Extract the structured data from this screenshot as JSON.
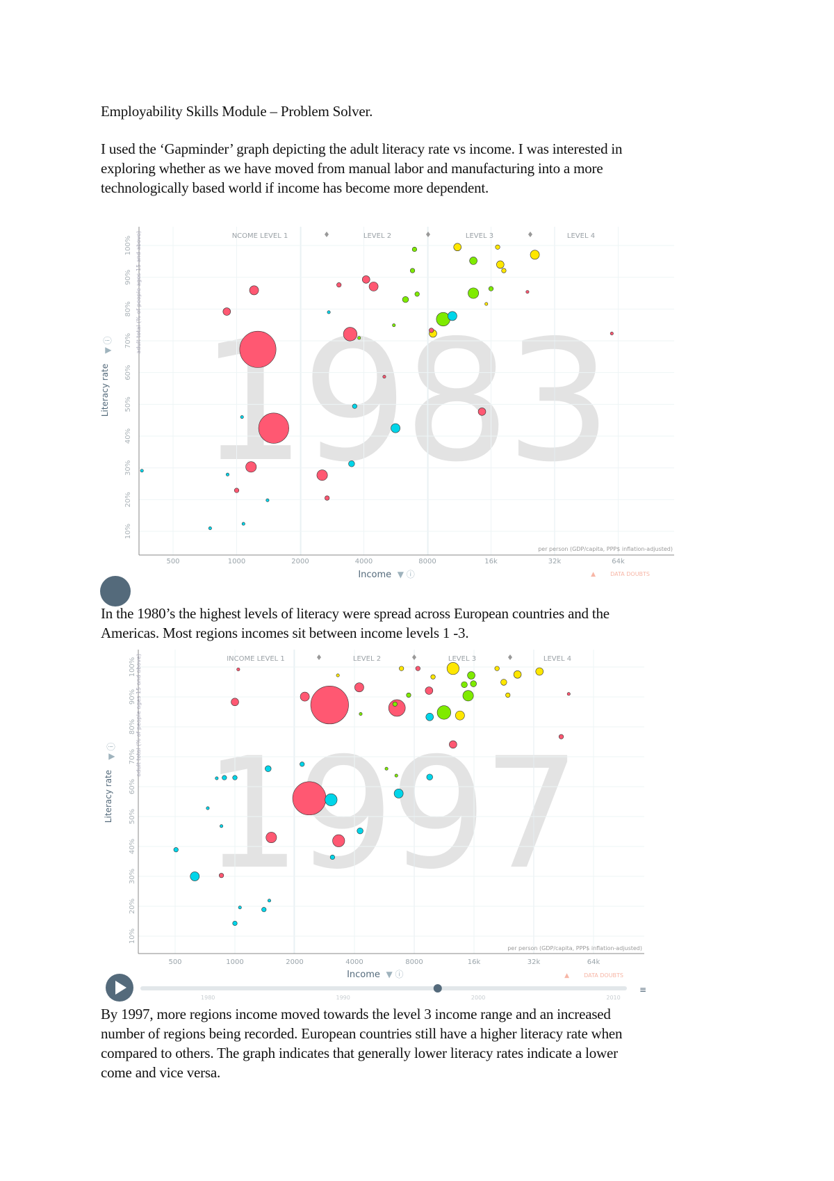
{
  "document": {
    "title": "Employability Skills Module – Problem Solver.",
    "paragraph_1": [
      "I used the ‘Gapminder’ graph depicting the adult literacy rate vs income. I was interested in",
      "exploring whether as we have moved from manual labor and manufacturing into a more",
      "technologically based world if income has become more dependent."
    ],
    "paragraph_2": [
      "In the 1980’s the highest levels of literacy were spread across European countries and the",
      "Americas. Most regions incomes sit between income levels 1 -3."
    ],
    "paragraph_3": [
      "By 1997, more regions income moved towards the level 3 income range and an increased",
      "number of regions being recorded. European countries still have a higher literacy rate when",
      "compared to others. The graph indicates that generally lower literacy rates indicate a lower",
      "come and vice versa."
    ]
  },
  "colors": {
    "red": "#ff5872",
    "cyan": "#00d5e9",
    "green": "#7feb00",
    "yellow": "#ffe700",
    "watermark": "#e3e3e3",
    "play": "#546a7b",
    "data_doubts": "#f7b6a6"
  },
  "chart_data": [
    {
      "type": "scatter",
      "year_label": "1983",
      "xlabel": "Income",
      "x_sublabel": "per person (GDP/capita, PPP$ inflation-adjusted)",
      "ylabel": "Literacy rate",
      "y_sublabel": "adult total (% of people ages 15 and above)",
      "x_scale": "log2",
      "x_ticks": [
        500,
        1000,
        2000,
        4000,
        8000,
        16000,
        32000,
        64000
      ],
      "x_tick_labels": [
        "500",
        "1000",
        "2000",
        "4000",
        "8000",
        "16k",
        "32k",
        "64k"
      ],
      "y_ticks": [
        10,
        20,
        30,
        40,
        50,
        60,
        70,
        80,
        90,
        100
      ],
      "y_tick_labels": [
        "10%",
        "20%",
        "30%",
        "40%",
        "50%",
        "60%",
        "70%",
        "80%",
        "90%",
        "100%"
      ],
      "level_labels": [
        "NCOME LEVEL 1",
        "LEVEL 2",
        "LEVEL 3",
        "LEVEL 4"
      ],
      "data_doubts": "DATA DOUBTS",
      "grid": true,
      "points": [
        {
          "x": 1260,
          "y": 67.3,
          "c": "red",
          "s": 24
        },
        {
          "x": 1498,
          "y": 42.5,
          "c": "red",
          "s": 20
        },
        {
          "x": 1209,
          "y": 85.9,
          "c": "red",
          "s": 6
        },
        {
          "x": 898,
          "y": 79.2,
          "c": "red",
          "s": 5
        },
        {
          "x": 3448,
          "y": 72.1,
          "c": "red",
          "s": 9
        },
        {
          "x": 4100,
          "y": 89.3,
          "c": "red",
          "s": 5
        },
        {
          "x": 4450,
          "y": 87.1,
          "c": "red",
          "s": 6
        },
        {
          "x": 3050,
          "y": 87.6,
          "c": "red",
          "s": 3
        },
        {
          "x": 1170,
          "y": 30.3,
          "c": "red",
          "s": 7
        },
        {
          "x": 2540,
          "y": 27.7,
          "c": "red",
          "s": 7
        },
        {
          "x": 1000,
          "y": 22.9,
          "c": "red",
          "s": 3
        },
        {
          "x": 2680,
          "y": 20.5,
          "c": "red",
          "s": 3
        },
        {
          "x": 14500,
          "y": 47.7,
          "c": "red",
          "s": 5
        },
        {
          "x": 8350,
          "y": 73.3,
          "c": "red",
          "s": 3
        },
        {
          "x": 5000,
          "y": 58.7,
          "c": "red",
          "s": 2
        },
        {
          "x": 23800,
          "y": 85.4,
          "c": "red",
          "s": 2
        },
        {
          "x": 59700,
          "y": 72.3,
          "c": "red",
          "s": 2
        },
        {
          "x": 5650,
          "y": 42.5,
          "c": "cyan",
          "s": 6
        },
        {
          "x": 10500,
          "y": 77.8,
          "c": "cyan",
          "s": 6
        },
        {
          "x": 3500,
          "y": 31.3,
          "c": "cyan",
          "s": 4
        },
        {
          "x": 3620,
          "y": 49.4,
          "c": "cyan",
          "s": 3
        },
        {
          "x": 2730,
          "y": 79,
          "c": "cyan",
          "s": 2
        },
        {
          "x": 356,
          "y": 29.1,
          "c": "cyan",
          "s": 2
        },
        {
          "x": 749,
          "y": 11,
          "c": "cyan",
          "s": 2
        },
        {
          "x": 1077,
          "y": 12.4,
          "c": "cyan",
          "s": 2
        },
        {
          "x": 1400,
          "y": 19.8,
          "c": "cyan",
          "s": 2
        },
        {
          "x": 906,
          "y": 27.9,
          "c": "cyan",
          "s": 2
        },
        {
          "x": 1060,
          "y": 46,
          "c": "cyan",
          "s": 2
        },
        {
          "x": 9500,
          "y": 76.8,
          "c": "green",
          "s": 9
        },
        {
          "x": 13200,
          "y": 85,
          "c": "green",
          "s": 7
        },
        {
          "x": 6950,
          "y": 98.8,
          "c": "green",
          "s": 3
        },
        {
          "x": 6800,
          "y": 92.1,
          "c": "green",
          "s": 3
        },
        {
          "x": 6300,
          "y": 83,
          "c": "green",
          "s": 4
        },
        {
          "x": 7150,
          "y": 84.7,
          "c": "green",
          "s": 3
        },
        {
          "x": 13200,
          "y": 95.2,
          "c": "green",
          "s": 5
        },
        {
          "x": 16000,
          "y": 86.4,
          "c": "green",
          "s": 3
        },
        {
          "x": 5550,
          "y": 74.9,
          "c": "green",
          "s": 2
        },
        {
          "x": 3800,
          "y": 70.9,
          "c": "green",
          "s": 2
        },
        {
          "x": 11100,
          "y": 99.5,
          "c": "yellow",
          "s": 5
        },
        {
          "x": 17200,
          "y": 99.5,
          "c": "yellow",
          "s": 3
        },
        {
          "x": 17700,
          "y": 94,
          "c": "yellow",
          "s": 5
        },
        {
          "x": 18400,
          "y": 92.1,
          "c": "yellow",
          "s": 3
        },
        {
          "x": 25800,
          "y": 97.1,
          "c": "yellow",
          "s": 6
        },
        {
          "x": 15200,
          "y": 81.6,
          "c": "yellow",
          "s": 2
        },
        {
          "x": 8500,
          "y": 72.3,
          "c": "yellow",
          "s": 5
        }
      ]
    },
    {
      "type": "scatter",
      "year_label": "1997",
      "xlabel": "Income",
      "x_sublabel": "per person (GDP/capita, PPP$ inflation-adjusted)",
      "ylabel": "Literacy rate",
      "y_sublabel": "adult total (% of people ages 15 and above)",
      "x_scale": "log2",
      "x_ticks": [
        500,
        1000,
        2000,
        4000,
        8000,
        16000,
        32000,
        64000
      ],
      "x_tick_labels": [
        "500",
        "1000",
        "2000",
        "4000",
        "8000",
        "16k",
        "32k",
        "64k"
      ],
      "y_ticks": [
        10,
        20,
        30,
        40,
        50,
        60,
        70,
        80,
        90,
        100
      ],
      "y_tick_labels": [
        "10%",
        "20%",
        "30%",
        "40%",
        "50%",
        "60%",
        "70%",
        "80%",
        "90%",
        "100%"
      ],
      "level_labels": [
        "INCOME LEVEL 1",
        "LEVEL 2",
        "LEVEL 3",
        "LEVEL 4"
      ],
      "data_doubts": "DATA DOUBTS",
      "grid": true,
      "timeline": {
        "labels": [
          "1980",
          "1990",
          "2000",
          "2010"
        ],
        "range": [
          1975,
          2011
        ],
        "current": 1997
      },
      "points": [
        {
          "x": 3000,
          "y": 87.3,
          "c": "red",
          "s": 25
        },
        {
          "x": 2370,
          "y": 56.1,
          "c": "red",
          "s": 22
        },
        {
          "x": 6550,
          "y": 86.3,
          "c": "red",
          "s": 11
        },
        {
          "x": 2250,
          "y": 90.1,
          "c": "red",
          "s": 6
        },
        {
          "x": 4230,
          "y": 93.2,
          "c": "red",
          "s": 6
        },
        {
          "x": 1000,
          "y": 88.3,
          "c": "red",
          "s": 5
        },
        {
          "x": 3330,
          "y": 41.9,
          "c": "red",
          "s": 8
        },
        {
          "x": 1525,
          "y": 43,
          "c": "red",
          "s": 7
        },
        {
          "x": 12550,
          "y": 74.1,
          "c": "red",
          "s": 5
        },
        {
          "x": 9500,
          "y": 92.1,
          "c": "red",
          "s": 5
        },
        {
          "x": 44000,
          "y": 76.7,
          "c": "red",
          "s": 3
        },
        {
          "x": 855,
          "y": 30.3,
          "c": "red",
          "s": 3
        },
        {
          "x": 8350,
          "y": 99.5,
          "c": "red",
          "s": 3
        },
        {
          "x": 1040,
          "y": 99.2,
          "c": "red",
          "s": 2
        },
        {
          "x": 48000,
          "y": 91,
          "c": "red",
          "s": 2
        },
        {
          "x": 3050,
          "y": 55.6,
          "c": "cyan",
          "s": 8
        },
        {
          "x": 6680,
          "y": 57.7,
          "c": "cyan",
          "s": 6
        },
        {
          "x": 628,
          "y": 30,
          "c": "cyan",
          "s": 6
        },
        {
          "x": 9570,
          "y": 63.2,
          "c": "cyan",
          "s": 4
        },
        {
          "x": 1470,
          "y": 66,
          "c": "cyan",
          "s": 4
        },
        {
          "x": 1000,
          "y": 63,
          "c": "cyan",
          "s": 3
        },
        {
          "x": 885,
          "y": 63,
          "c": "cyan",
          "s": 3
        },
        {
          "x": 810,
          "y": 62.8,
          "c": "cyan",
          "s": 2
        },
        {
          "x": 4270,
          "y": 45.2,
          "c": "cyan",
          "s": 4
        },
        {
          "x": 3100,
          "y": 36.4,
          "c": "cyan",
          "s": 3
        },
        {
          "x": 505,
          "y": 38.9,
          "c": "cyan",
          "s": 3
        },
        {
          "x": 730,
          "y": 52.8,
          "c": "cyan",
          "s": 2
        },
        {
          "x": 855,
          "y": 46.8,
          "c": "cyan",
          "s": 2
        },
        {
          "x": 1000,
          "y": 14.3,
          "c": "cyan",
          "s": 3
        },
        {
          "x": 1400,
          "y": 18.9,
          "c": "cyan",
          "s": 3
        },
        {
          "x": 1490,
          "y": 21.9,
          "c": "cyan",
          "s": 2
        },
        {
          "x": 1060,
          "y": 19.6,
          "c": "cyan",
          "s": 2
        },
        {
          "x": 9570,
          "y": 83.3,
          "c": "cyan",
          "s": 5
        },
        {
          "x": 2180,
          "y": 67.5,
          "c": "cyan",
          "s": 3
        },
        {
          "x": 11300,
          "y": 84.8,
          "c": "green",
          "s": 9
        },
        {
          "x": 14950,
          "y": 90.4,
          "c": "green",
          "s": 7
        },
        {
          "x": 15500,
          "y": 97.2,
          "c": "green",
          "s": 5
        },
        {
          "x": 14300,
          "y": 94.1,
          "c": "green",
          "s": 4
        },
        {
          "x": 15900,
          "y": 94.4,
          "c": "green",
          "s": 4
        },
        {
          "x": 6400,
          "y": 87.6,
          "c": "green",
          "s": 3
        },
        {
          "x": 7500,
          "y": 90.6,
          "c": "green",
          "s": 3
        },
        {
          "x": 5800,
          "y": 66,
          "c": "green",
          "s": 2
        },
        {
          "x": 6500,
          "y": 63.7,
          "c": "green",
          "s": 2
        },
        {
          "x": 4300,
          "y": 84.3,
          "c": "green",
          "s": 2
        },
        {
          "x": 12550,
          "y": 99.5,
          "c": "yellow",
          "s": 8
        },
        {
          "x": 13600,
          "y": 83.8,
          "c": "yellow",
          "s": 6
        },
        {
          "x": 26500,
          "y": 97.5,
          "c": "yellow",
          "s": 5
        },
        {
          "x": 34200,
          "y": 98.5,
          "c": "yellow",
          "s": 5
        },
        {
          "x": 22600,
          "y": 94.9,
          "c": "yellow",
          "s": 4
        },
        {
          "x": 20900,
          "y": 99.5,
          "c": "yellow",
          "s": 3
        },
        {
          "x": 9950,
          "y": 96.7,
          "c": "yellow",
          "s": 3
        },
        {
          "x": 6900,
          "y": 99.5,
          "c": "yellow",
          "s": 3
        },
        {
          "x": 3300,
          "y": 97.2,
          "c": "yellow",
          "s": 2
        },
        {
          "x": 23700,
          "y": 90.6,
          "c": "yellow",
          "s": 3
        }
      ]
    }
  ]
}
